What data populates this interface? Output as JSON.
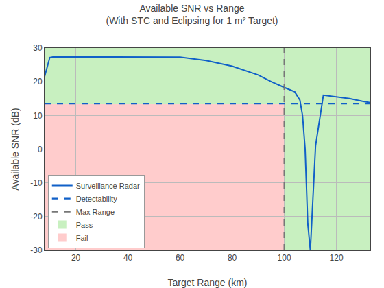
{
  "chart_data": {
    "type": "line",
    "title": "Available SNR vs Range",
    "subtitle": "(With STC and Eclipsing for 1 m² Target)",
    "xlabel": "Target Range (km)",
    "ylabel": "Available SNR (dB)",
    "xlim": [
      8,
      133
    ],
    "ylim": [
      -30,
      30
    ],
    "xticks": [
      20,
      40,
      60,
      80,
      100,
      120
    ],
    "yticks": [
      -30,
      -20,
      -10,
      0,
      10,
      20,
      30
    ],
    "grid": true,
    "legend": "lower left",
    "x": [
      8,
      10,
      11.5,
      57,
      60,
      70,
      80,
      90,
      95,
      100,
      104,
      106,
      107,
      108,
      109,
      110,
      111,
      112,
      115,
      120,
      125,
      130,
      133
    ],
    "series": [
      {
        "name": "Surveillance Radar",
        "color": "#1060c8",
        "line_style": "solid",
        "values": [
          21.5,
          27.2,
          27.4,
          27.4,
          27.3,
          26.3,
          24.6,
          22.0,
          20.0,
          18.3,
          17.0,
          14.5,
          10.0,
          0.0,
          -22.0,
          -30.0,
          -14.0,
          1.0,
          16.0,
          15.5,
          15.0,
          14.2,
          13.8
        ]
      }
    ],
    "reference_lines": [
      {
        "name": "Detectability",
        "axis": "y",
        "value": 13.5,
        "color": "#1060c8",
        "line_style": "dashed"
      },
      {
        "name": "Max Range",
        "axis": "x",
        "value": 100,
        "color": "#777777",
        "line_style": "dashed"
      }
    ],
    "regions": [
      {
        "name": "Pass",
        "color": "#c8f0c0",
        "x": [
          8,
          133
        ],
        "y": [
          -30,
          30
        ]
      },
      {
        "name": "Fail",
        "color": "#ffcccc",
        "x": [
          8,
          100
        ],
        "y": [
          -30,
          13.5
        ]
      }
    ]
  }
}
